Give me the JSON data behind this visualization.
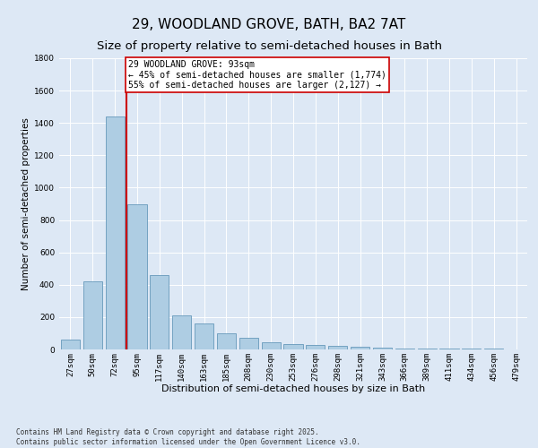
{
  "title": "29, WOODLAND GROVE, BATH, BA2 7AT",
  "subtitle": "Size of property relative to semi-detached houses in Bath",
  "xlabel": "Distribution of semi-detached houses by size in Bath",
  "ylabel": "Number of semi-detached properties",
  "categories": [
    "27sqm",
    "50sqm",
    "72sqm",
    "95sqm",
    "117sqm",
    "140sqm",
    "163sqm",
    "185sqm",
    "208sqm",
    "230sqm",
    "253sqm",
    "276sqm",
    "298sqm",
    "321sqm",
    "343sqm",
    "366sqm",
    "389sqm",
    "411sqm",
    "434sqm",
    "456sqm",
    "479sqm"
  ],
  "values": [
    60,
    420,
    1440,
    900,
    460,
    210,
    160,
    100,
    70,
    45,
    35,
    25,
    20,
    15,
    12,
    8,
    5,
    8,
    3,
    3,
    2
  ],
  "bar_color": "#aecde3",
  "bar_edge_color": "#6699bb",
  "property_line_color": "#cc0000",
  "property_bar_index": 2,
  "ylim": [
    0,
    1800
  ],
  "yticks": [
    0,
    200,
    400,
    600,
    800,
    1000,
    1200,
    1400,
    1600,
    1800
  ],
  "annotation_line1": "29 WOODLAND GROVE: 93sqm",
  "annotation_line2": "← 45% of semi-detached houses are smaller (1,774)",
  "annotation_line3": "55% of semi-detached houses are larger (2,127) →",
  "annotation_box_edgecolor": "#cc0000",
  "background_color": "#dde8f5",
  "grid_color": "#ffffff",
  "footer_line1": "Contains HM Land Registry data © Crown copyright and database right 2025.",
  "footer_line2": "Contains public sector information licensed under the Open Government Licence v3.0.",
  "title_fontsize": 11,
  "subtitle_fontsize": 9.5,
  "ylabel_fontsize": 7.5,
  "xlabel_fontsize": 8,
  "tick_fontsize": 6.5,
  "annotation_fontsize": 7,
  "footer_fontsize": 5.5
}
